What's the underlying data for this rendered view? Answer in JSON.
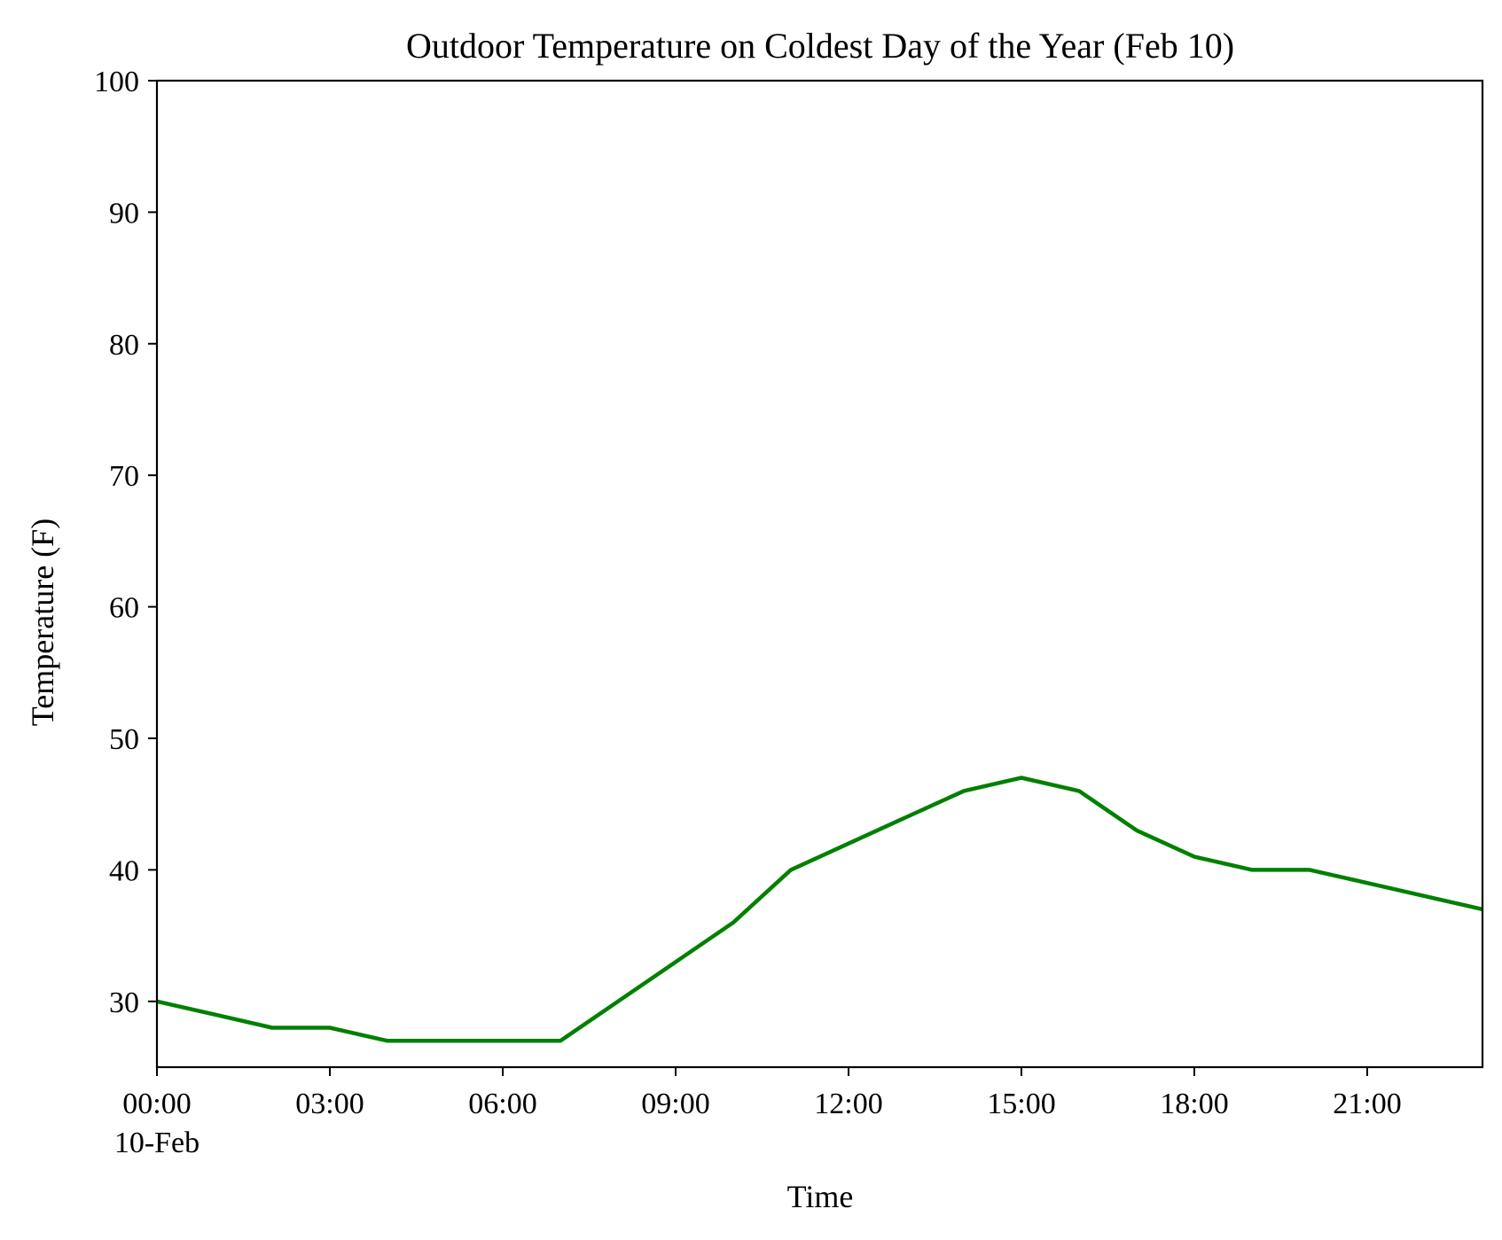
{
  "chart_data": {
    "type": "line",
    "title": "Outdoor Temperature on Coldest Day of the Year (Feb 10)",
    "xlabel": "Time",
    "ylabel": "Temperature (F)",
    "x_ticks": [
      "00:00",
      "03:00",
      "06:00",
      "09:00",
      "12:00",
      "15:00",
      "18:00",
      "21:00"
    ],
    "x_tick_sublabel": "10-Feb",
    "xlim": [
      "2024-02-10 00:00",
      "2024-02-10 23:00"
    ],
    "y_ticks": [
      30,
      40,
      50,
      60,
      70,
      80,
      90,
      100
    ],
    "ylim": [
      25,
      100
    ],
    "grid": false,
    "series": [
      {
        "color": "#008000",
        "x": [
          "00:00",
          "01:00",
          "02:00",
          "03:00",
          "04:00",
          "05:00",
          "06:00",
          "07:00",
          "08:00",
          "09:00",
          "10:00",
          "11:00",
          "12:00",
          "13:00",
          "14:00",
          "15:00",
          "16:00",
          "17:00",
          "18:00",
          "19:00",
          "20:00",
          "21:00",
          "22:00",
          "23:00"
        ],
        "values": [
          30,
          29,
          28,
          28,
          27,
          27,
          27,
          27,
          30,
          33,
          36,
          40,
          42,
          44,
          46,
          47,
          46,
          43,
          41,
          40,
          40,
          39,
          38,
          37
        ]
      }
    ]
  }
}
